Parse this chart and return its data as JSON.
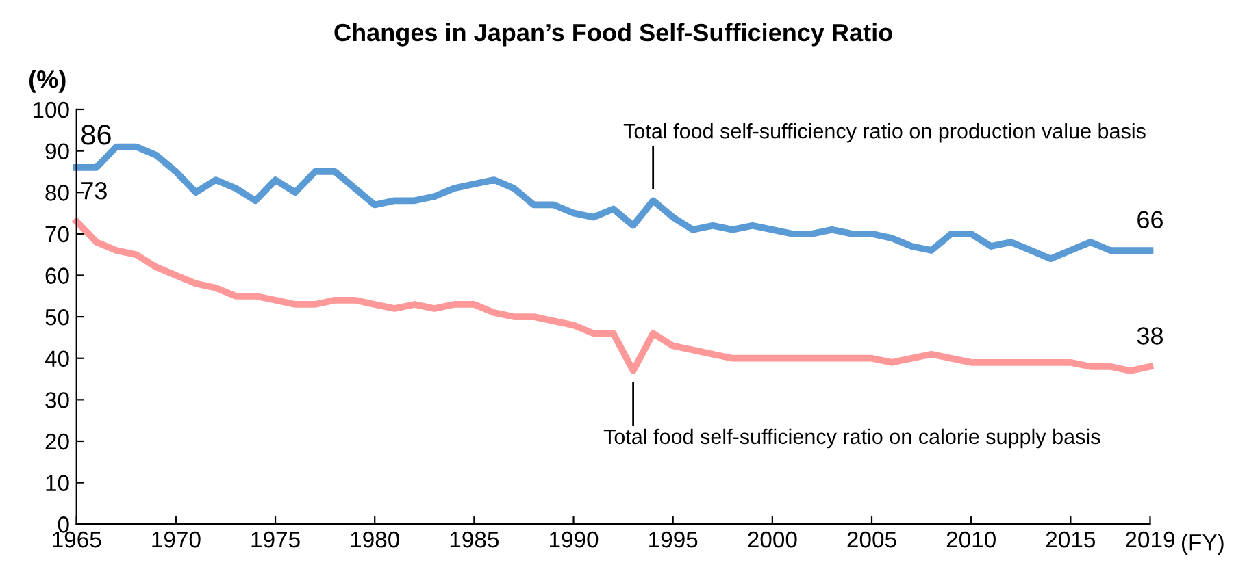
{
  "chart_data": {
    "type": "line",
    "title": "Changes in Japan’s Food Self-Sufficiency Ratio",
    "ylabel": "(%)",
    "xlabel": "(FY)",
    "x": [
      1965,
      1966,
      1967,
      1968,
      1969,
      1970,
      1971,
      1972,
      1973,
      1974,
      1975,
      1976,
      1977,
      1978,
      1979,
      1980,
      1981,
      1982,
      1983,
      1984,
      1985,
      1986,
      1987,
      1988,
      1989,
      1990,
      1991,
      1992,
      1993,
      1994,
      1995,
      1996,
      1997,
      1998,
      1999,
      2000,
      2001,
      2002,
      2003,
      2004,
      2005,
      2006,
      2007,
      2008,
      2009,
      2010,
      2011,
      2012,
      2013,
      2014,
      2015,
      2016,
      2017,
      2018,
      2019
    ],
    "series": [
      {
        "color": "#5b9bd5",
        "values": [
          86,
          86,
          91,
          91,
          89,
          85,
          80,
          83,
          81,
          78,
          83,
          80,
          85,
          85,
          81,
          77,
          78,
          78,
          79,
          81,
          82,
          83,
          81,
          77,
          77,
          75,
          74,
          76,
          72,
          78,
          74,
          71,
          72,
          71,
          72,
          71,
          70,
          70,
          71,
          70,
          70,
          69,
          67,
          66,
          70,
          70,
          67,
          68,
          66,
          64,
          66,
          68,
          66,
          66,
          66
        ],
        "value_labels": [
          "86",
          null,
          null,
          null,
          null,
          null,
          null,
          null,
          null,
          null,
          null,
          null,
          null,
          null,
          null,
          null,
          null,
          null,
          null,
          null,
          null,
          null,
          null,
          null,
          null,
          null,
          null,
          null,
          null,
          null,
          null,
          null,
          null,
          null,
          null,
          null,
          null,
          null,
          null,
          null,
          null,
          null,
          null,
          null,
          null,
          null,
          null,
          null,
          null,
          null,
          null,
          null,
          null,
          null,
          "66"
        ]
      },
      {
        "color": "#ff9999",
        "values": [
          73,
          68,
          66,
          65,
          62,
          60,
          58,
          57,
          55,
          55,
          54,
          53,
          53,
          54,
          54,
          53,
          52,
          53,
          52,
          53,
          53,
          51,
          50,
          50,
          49,
          48,
          46,
          46,
          37,
          46,
          43,
          42,
          41,
          40,
          40,
          40,
          40,
          40,
          40,
          40,
          40,
          39,
          40,
          41,
          40,
          39,
          39,
          39,
          39,
          39,
          39,
          38,
          38,
          37,
          38
        ],
        "value_labels": [
          "73",
          null,
          null,
          null,
          null,
          null,
          null,
          null,
          null,
          null,
          null,
          null,
          null,
          null,
          null,
          null,
          null,
          null,
          null,
          null,
          null,
          null,
          null,
          null,
          null,
          null,
          null,
          null,
          null,
          null,
          null,
          null,
          null,
          null,
          null,
          null,
          null,
          null,
          null,
          null,
          null,
          null,
          null,
          null,
          null,
          null,
          null,
          null,
          null,
          null,
          null,
          null,
          null,
          null,
          "38"
        ]
      }
    ],
    "annotations": [
      {
        "text": "Total food self-sufficiency ratio on production value basis",
        "x": 1994,
        "y": 78
      },
      {
        "text": "Total food self-sufficiency ratio on calorie supply basis",
        "x": 1993,
        "y": 37
      }
    ],
    "xlim": [
      1965,
      2019
    ],
    "xticks": [
      1965,
      1970,
      1975,
      1980,
      1985,
      1990,
      1995,
      2000,
      2005,
      2010,
      2015,
      2019
    ],
    "ylim": [
      0,
      100
    ],
    "yticks": [
      0,
      10,
      20,
      30,
      40,
      50,
      60,
      70,
      80,
      90,
      100
    ],
    "grid": false,
    "legend": false,
    "marker": "none",
    "line_style": "solid"
  }
}
